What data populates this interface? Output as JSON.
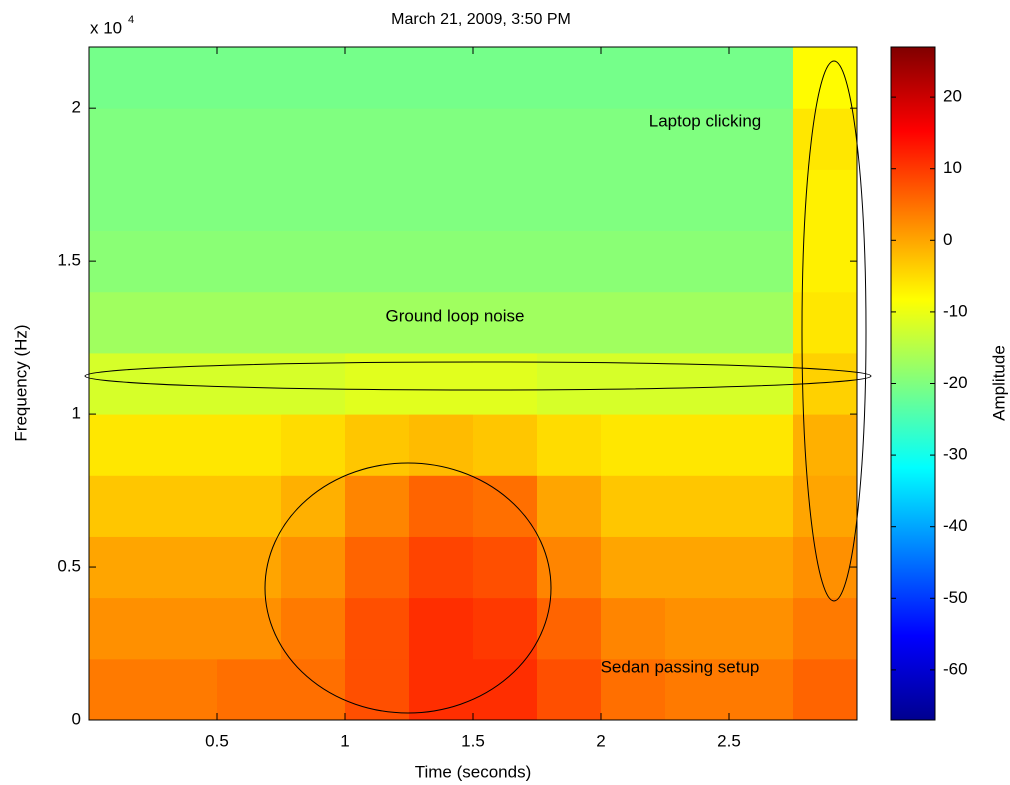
{
  "chart_data": {
    "type": "heatmap",
    "title": "March 21, 2009, 3:50 PM",
    "x_label": "Time (seconds)",
    "y_label": "Frequency (Hz)",
    "y_scale_label": "x 10",
    "y_scale_exponent": "4",
    "colorbar_label": "Amplitude",
    "colormap": "jet",
    "xlim": [
      0,
      3
    ],
    "xticks": [
      0.5,
      1,
      1.5,
      2,
      2.5
    ],
    "ylim": [
      0,
      22000
    ],
    "yticks": [
      0,
      {
        "value": 5000,
        "label": "0.5"
      },
      {
        "value": 10000,
        "label": "1"
      },
      {
        "value": 15000,
        "label": "1.5"
      },
      {
        "value": 20000,
        "label": "2"
      }
    ],
    "clim": [
      -67,
      27
    ],
    "cticks": [
      20,
      10,
      0,
      -10,
      -20,
      -30,
      -40,
      -50,
      -60
    ],
    "x_bins": [
      0,
      0.25,
      0.5,
      0.75,
      1,
      1.25,
      1.5,
      1.75,
      2,
      2.25,
      2.5,
      2.75,
      3
    ],
    "y_bins": [
      0,
      2000,
      4000,
      6000,
      8000,
      10000,
      12000,
      14000,
      16000,
      18000,
      20000,
      22000
    ],
    "z": [
      [
        4,
        4,
        5,
        5,
        8,
        11,
        11,
        8,
        5,
        4,
        4,
        6
      ],
      [
        2,
        2,
        2,
        4,
        8,
        11,
        10,
        6,
        3,
        2,
        2,
        4
      ],
      [
        0,
        0,
        0,
        2,
        6,
        9,
        8,
        3,
        0,
        0,
        0,
        2
      ],
      [
        -3,
        -3,
        -3,
        -1,
        3,
        6,
        5,
        0,
        -3,
        -3,
        -3,
        0
      ],
      [
        -6,
        -6,
        -6,
        -5,
        -3,
        -2,
        -3,
        -5,
        -6,
        -6,
        -6,
        -1
      ],
      [
        -12,
        -12,
        -12,
        -12,
        -11,
        -11,
        -11,
        -12,
        -12,
        -12,
        -12,
        -4
      ],
      [
        -17,
        -17,
        -17,
        -17,
        -17,
        -17,
        -17,
        -17,
        -17,
        -17,
        -17,
        -6
      ],
      [
        -19,
        -19,
        -19,
        -19,
        -19,
        -19,
        -19,
        -19,
        -19,
        -19,
        -19,
        -7
      ],
      [
        -20,
        -20,
        -20,
        -20,
        -20,
        -20,
        -20,
        -20,
        -20,
        -20,
        -20,
        -7
      ],
      [
        -20,
        -20,
        -20,
        -20,
        -20,
        -20,
        -20,
        -20,
        -20,
        -20,
        -20,
        -6
      ],
      [
        -21,
        -21,
        -21,
        -21,
        -21,
        -21,
        -21,
        -21,
        -21,
        -21,
        -21,
        -8
      ]
    ],
    "annotations": [
      "Laptop clicking",
      "Ground loop noise",
      "Sedan passing setup"
    ]
  }
}
